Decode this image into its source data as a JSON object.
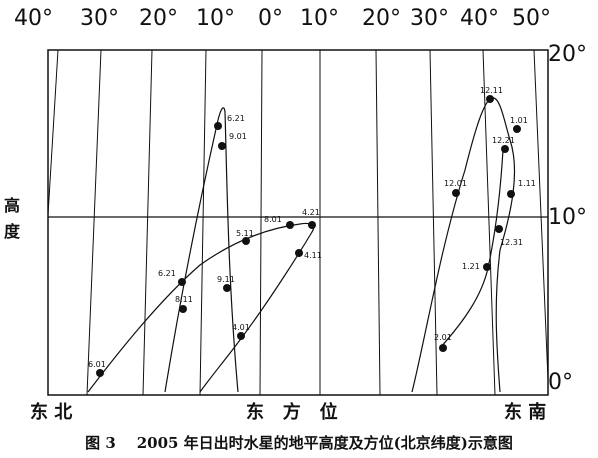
{
  "axis": {
    "top_labels": [
      "40°",
      "30°",
      "20°",
      "10°",
      "0°",
      "10°",
      "20°",
      "30°",
      "40°",
      "50°"
    ],
    "right_labels": [
      "20°",
      "10°",
      "0°"
    ],
    "left_labels": [
      "高",
      "度"
    ],
    "bottom_labels": [
      "东 北",
      "东   方   位",
      "东 南"
    ]
  },
  "points": [
    "6.21",
    "9.01",
    "8.01",
    "4.21",
    "5.11",
    "6.21",
    "8.11",
    "9.11",
    "4.11",
    "4.01",
    "6.01",
    "12.11",
    "1.01",
    "12.21",
    "12.01",
    "1.11",
    "12.31",
    "1.21",
    "2.01"
  ],
  "caption": "图 3    2005 年日出时水星的地平高度及方位(北京纬度)示意图"
}
